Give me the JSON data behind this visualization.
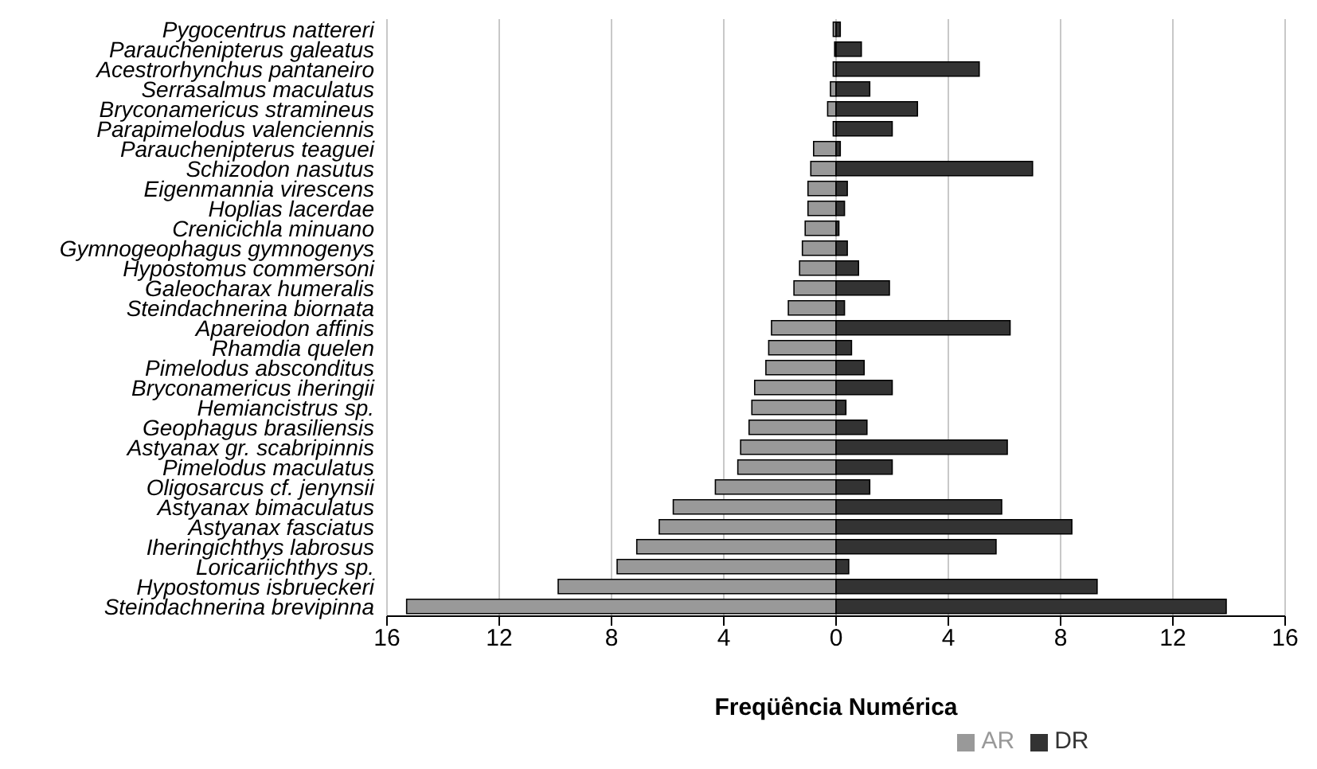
{
  "chart_data": {
    "type": "bar",
    "orientation": "horizontal",
    "stacked": true,
    "xlabel": "Freqüência Numérica",
    "categories": [
      "Pygocentrus nattereri",
      "Parauchenipterus galeatus",
      "Acestrorhynchus pantaneiro",
      "Serrasalmus maculatus",
      "Bryconamericus stramineus",
      "Parapimelodus valenciennis",
      "Parauchenipterus teaguei",
      "Schizodon nasutus",
      "Eigenmannia virescens",
      "Hoplias lacerdae",
      "Crenicichla minuano",
      "Gymnogeophagus gymnogenys",
      "Hypostomus commersoni",
      "Galeocharax humeralis",
      "Steindachnerina biornata",
      "Apareiodon affinis",
      "Rhamdia quelen",
      "Pimelodus absconditus",
      "Bryconamericus iheringii",
      "Hemiancistrus sp.",
      "Geophagus brasiliensis",
      "Astyanax gr. scabripinnis",
      "Pimelodus maculatus",
      "Oligosarcus cf. jenynsii",
      "Astyanax bimaculatus",
      "Astyanax fasciatus",
      "Iheringichthys labrosus",
      "Loricariichthys sp.",
      "Hypostomus isbrueckeri",
      "Steindachnerina brevipinna"
    ],
    "series": [
      {
        "name": "AR",
        "color": "#999999",
        "values": [
          -0.1,
          -0.05,
          -0.1,
          -0.2,
          -0.3,
          -0.1,
          -0.8,
          -0.9,
          -1.0,
          -1.0,
          -1.1,
          -1.2,
          -1.3,
          -1.5,
          -1.7,
          -2.3,
          -2.4,
          -2.5,
          -2.9,
          -3.0,
          -3.1,
          -3.4,
          -3.5,
          -4.3,
          -5.8,
          -6.3,
          -7.1,
          -7.8,
          -9.9,
          -15.3
        ]
      },
      {
        "name": "DR",
        "color": "#333333",
        "values": [
          0.15,
          0.9,
          5.1,
          1.2,
          2.9,
          2.0,
          0.15,
          7.0,
          0.4,
          0.3,
          0.1,
          0.4,
          0.8,
          1.9,
          0.3,
          6.2,
          0.55,
          1.0,
          2.0,
          0.35,
          1.1,
          6.1,
          2.0,
          1.2,
          5.9,
          8.4,
          5.7,
          0.45,
          9.3,
          13.9
        ]
      }
    ],
    "xlim": [
      -16,
      16
    ],
    "xticks": [
      {
        "value": -16,
        "label": "16"
      },
      {
        "value": -12,
        "label": "12"
      },
      {
        "value": -8,
        "label": "8"
      },
      {
        "value": -4,
        "label": "4"
      },
      0,
      4,
      8,
      12,
      16
    ],
    "grid": "x",
    "legend": "bottom"
  }
}
